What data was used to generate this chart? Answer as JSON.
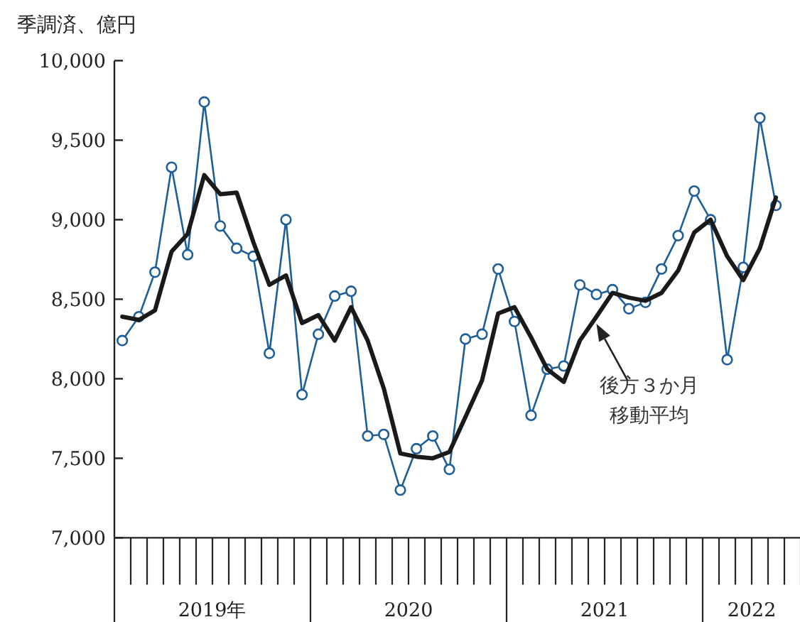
{
  "chart_data": {
    "type": "line",
    "ylabel": "季調済、億円",
    "x": [
      "2019-01-16",
      "2019-02-15",
      "2019-03-16",
      "2019-04-16",
      "2019-05-16",
      "2019-06-16",
      "2019-07-16",
      "2019-08-16",
      "2019-09-16",
      "2019-10-16",
      "2019-11-16",
      "2019-12-16",
      "2020-01-16",
      "2020-02-15",
      "2020-03-16",
      "2020-04-16",
      "2020-05-16",
      "2020-06-16",
      "2020-07-16",
      "2020-08-16",
      "2020-09-16",
      "2020-10-16",
      "2020-11-16",
      "2020-12-16",
      "2021-01-16",
      "2021-02-15",
      "2021-03-16",
      "2021-04-16",
      "2021-05-16",
      "2021-06-16",
      "2021-07-16",
      "2021-08-16",
      "2021-09-16",
      "2021-10-16",
      "2021-11-16",
      "2021-12-16",
      "2022-01-16",
      "2022-02-15",
      "2022-03-16",
      "2022-04-16",
      "2022-05-16"
    ],
    "series": [
      {
        "color": "#1f5f99",
        "marker": "circle",
        "values": [
          8240,
          8390,
          8670,
          9330,
          8780,
          9740,
          8960,
          8820,
          8770,
          8160,
          9000,
          7900,
          8280,
          8520,
          8550,
          7640,
          7650,
          7300,
          7560,
          7640,
          7430,
          8250,
          8280,
          8690,
          8360,
          7770,
          8060,
          8080,
          8590,
          8530,
          8560,
          8440,
          8480,
          8690,
          8900,
          9180,
          9000,
          8120,
          8700,
          9640,
          9090
        ]
      },
      {
        "color": "#1a1a1a",
        "marker": "none",
        "values": [
          8390,
          8370,
          8430,
          8800,
          8910,
          9280,
          9160,
          9170,
          8860,
          8590,
          8650,
          8350,
          8400,
          8240,
          8450,
          8240,
          7940,
          7530,
          7510,
          7500,
          7540,
          7760,
          7990,
          8410,
          8450,
          8260,
          8060,
          7980,
          8240,
          8390,
          8540,
          8510,
          8490,
          8540,
          8680,
          8920,
          9000,
          8770,
          8620,
          8820,
          9140
        ]
      }
    ],
    "xlim": [
      "2019-01-01",
      "2022-07-01"
    ],
    "xticks": [
      {
        "value": "2019-07-01",
        "label": "2019年"
      },
      {
        "value": "2020-07-01",
        "label": "2020"
      },
      {
        "value": "2021-07-01",
        "label": "2021"
      },
      {
        "value": "2022-04-01",
        "label": "2022"
      }
    ],
    "ylim": [
      7000,
      10000
    ],
    "yticks": [
      {
        "value": 7000,
        "label": "7,000"
      },
      {
        "value": 7500,
        "label": "7,500"
      },
      {
        "value": 8000,
        "label": "8,000"
      },
      {
        "value": 8500,
        "label": "8,500"
      },
      {
        "value": 9000,
        "label": "9,000"
      },
      {
        "value": 9500,
        "label": "9,500"
      },
      {
        "value": 10000,
        "label": "10,000"
      }
    ],
    "annotations": [
      {
        "text": "後方３か月移動平均",
        "x": "2021-06-16",
        "y": 8390
      }
    ],
    "grid": false
  }
}
